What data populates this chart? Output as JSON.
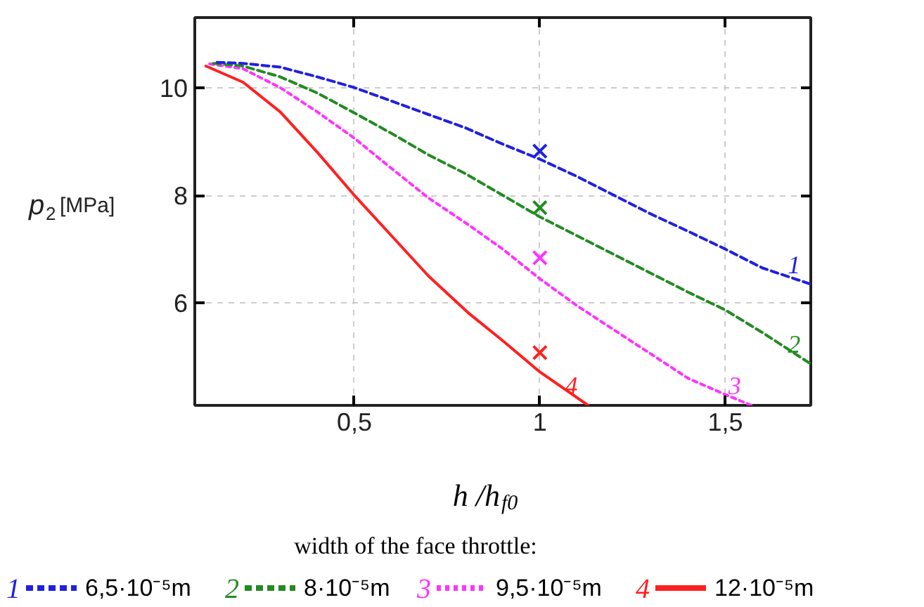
{
  "chart_data": {
    "type": "line",
    "xlabel": "h /h$_{f0}$",
    "ylabel": "p$_{2}$ [MPa]",
    "legend_title": "width of the face throttle:",
    "xlim": [
      0.07,
      1.73
    ],
    "ylim": [
      4.1,
      11.3
    ],
    "xticks": [
      {
        "value": 0.5,
        "label": "0,5"
      },
      1,
      {
        "value": 1.5,
        "label": "1,5"
      }
    ],
    "yticks": [
      6,
      8,
      10
    ],
    "grid": true,
    "legend": "bottom",
    "series": [
      {
        "name": "6,5·10⁻⁵m",
        "color": "#2020e0",
        "line_style": "dashed",
        "x": [
          0.13,
          0.2,
          0.3,
          0.4,
          0.5,
          0.6,
          0.7,
          0.8,
          0.9,
          1.0,
          1.1,
          1.2,
          1.3,
          1.4,
          1.5,
          1.6,
          1.73
        ],
        "values": [
          10.47,
          10.45,
          10.38,
          10.2,
          10.0,
          9.75,
          9.5,
          9.25,
          8.95,
          8.67,
          8.35,
          8.0,
          7.65,
          7.33,
          7.0,
          6.65,
          6.35
        ]
      },
      {
        "name": "8·10⁻⁵m",
        "color": "#228b22",
        "line_style": "dashed",
        "x": [
          0.12,
          0.2,
          0.3,
          0.4,
          0.5,
          0.6,
          0.7,
          0.8,
          0.9,
          1.0,
          1.1,
          1.2,
          1.3,
          1.4,
          1.5,
          1.6,
          1.73
        ],
        "values": [
          10.45,
          10.4,
          10.2,
          9.9,
          9.53,
          9.15,
          8.75,
          8.4,
          8.0,
          7.6,
          7.25,
          6.9,
          6.55,
          6.2,
          5.87,
          5.45,
          4.87
        ]
      },
      {
        "name": "9,5·10⁻⁵m",
        "color": "#ff33ff",
        "line_style": "dotted",
        "x": [
          0.11,
          0.2,
          0.3,
          0.4,
          0.5,
          0.6,
          0.7,
          0.81,
          0.9,
          1.0,
          1.1,
          1.2,
          1.3,
          1.4,
          1.5,
          1.57
        ],
        "values": [
          10.44,
          10.35,
          10.0,
          9.55,
          9.06,
          8.5,
          7.95,
          7.44,
          7.0,
          6.45,
          5.95,
          5.5,
          5.05,
          4.6,
          4.3,
          4.1
        ]
      },
      {
        "name": "12·10⁻⁵m",
        "color": "#ff2020",
        "line_style": "solid",
        "x": [
          0.1,
          0.2,
          0.3,
          0.4,
          0.5,
          0.6,
          0.7,
          0.81,
          0.9,
          1.0,
          1.13
        ],
        "values": [
          10.4,
          10.1,
          9.55,
          8.8,
          8.0,
          7.25,
          6.5,
          5.8,
          5.3,
          4.72,
          4.1
        ]
      },
      {
        "type": "scatter",
        "marker": "cross",
        "color": "#2020e0",
        "x": [
          1
        ],
        "values": [
          8.82
        ]
      },
      {
        "type": "scatter",
        "marker": "cross",
        "color": "#228b22",
        "x": [
          1
        ],
        "values": [
          7.77
        ]
      },
      {
        "type": "scatter",
        "marker": "cross",
        "color": "#ff33ff",
        "x": [
          1
        ],
        "values": [
          6.84
        ]
      },
      {
        "type": "scatter",
        "marker": "cross",
        "color": "#ff2020",
        "x": [
          1
        ],
        "values": [
          5.08
        ]
      }
    ],
    "annotations": [
      "1",
      "2",
      "3",
      "4"
    ]
  }
}
